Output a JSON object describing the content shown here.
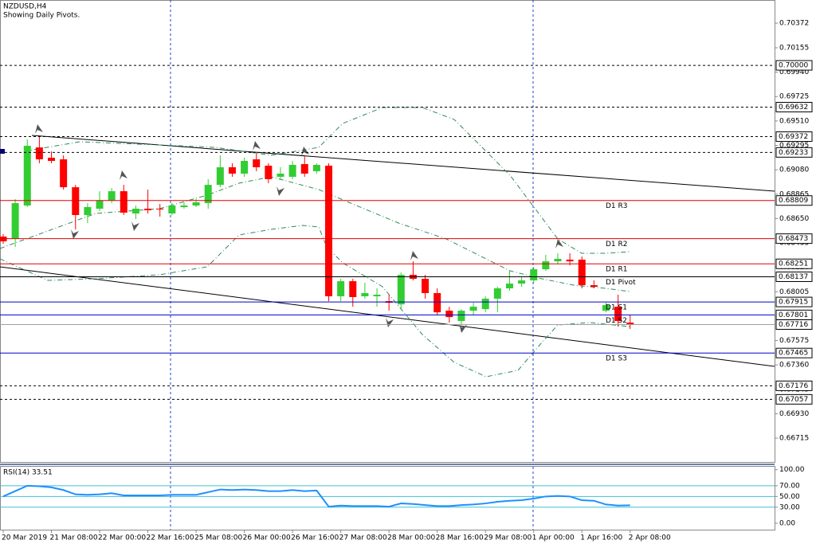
{
  "title": "NZDUSD,H4",
  "subtitle": "Showing Daily Pivots.",
  "chart_data": [
    {
      "type": "candlestick",
      "categories": [
        "20 Mar 2019",
        null,
        null,
        null,
        "21 Mar 08:00",
        null,
        null,
        null,
        "22 Mar 00:00",
        null,
        null,
        null,
        "22 Mar 16:00",
        null,
        null,
        null,
        "25 Mar 08:00",
        null,
        null,
        null,
        "26 Mar 00:00",
        null,
        null,
        null,
        "26 Mar 16:00",
        null,
        null,
        null,
        "27 Mar 08:00",
        null,
        null,
        null,
        "28 Mar 00:00",
        null,
        null,
        null,
        "28 Mar 16:00",
        null,
        null,
        null,
        "29 Mar 08:00",
        null,
        null,
        null,
        "1 Apr 00:00",
        null,
        null,
        null,
        "1 Apr 16:00",
        null,
        null,
        null,
        "2 Apr 08:00"
      ],
      "open": [
        0.68491,
        0.6847,
        0.68765,
        0.69277,
        0.69186,
        0.69172,
        0.68926,
        0.68681,
        0.68737,
        0.68807,
        0.68891,
        0.68695,
        0.68737,
        0.68737,
        0.68695,
        0.68751,
        0.68765,
        0.68786,
        0.68947,
        0.69102,
        0.69046,
        0.69172,
        0.69116,
        0.69018,
        0.69018,
        0.6913,
        0.69067,
        0.69116,
        0.67965,
        0.68098,
        0.67965,
        0.67965,
        0.67922,
        0.67894,
        0.68154,
        0.68119,
        0.67993,
        0.67838,
        0.67747,
        0.67838,
        0.67852,
        0.67944,
        0.68035,
        0.68077,
        0.68105,
        0.68203,
        0.68273,
        0.68288,
        0.68288,
        0.68063,
        0.67838,
        0.67873,
        0.67733
      ],
      "high": [
        0.68512,
        0.68821,
        0.69348,
        0.69369,
        0.69242,
        0.69207,
        0.68947,
        0.68786,
        0.68891,
        0.68919,
        0.68947,
        0.68765,
        0.68905,
        0.68779,
        0.68786,
        0.68793,
        0.68821,
        0.68997,
        0.69207,
        0.69137,
        0.69186,
        0.69228,
        0.69137,
        0.69102,
        0.69158,
        0.692,
        0.69137,
        0.69137,
        0.68119,
        0.68119,
        0.68084,
        0.68035,
        0.67979,
        0.68175,
        0.68273,
        0.68154,
        0.68035,
        0.67873,
        0.67852,
        0.67908,
        0.67965,
        0.68049,
        0.68189,
        0.68133,
        0.68224,
        0.6833,
        0.68344,
        0.68344,
        0.68316,
        0.68105,
        0.67908,
        0.67979,
        0.67803
      ],
      "low": [
        0.68428,
        0.684,
        0.68751,
        0.69137,
        0.69137,
        0.68905,
        0.68554,
        0.6861,
        0.68716,
        0.68786,
        0.68681,
        0.68646,
        0.68695,
        0.68667,
        0.68681,
        0.68737,
        0.68751,
        0.68737,
        0.68926,
        0.69018,
        0.69018,
        0.69067,
        0.68961,
        0.68997,
        0.68997,
        0.69018,
        0.69046,
        0.67922,
        0.67922,
        0.67873,
        0.67944,
        0.67873,
        0.67838,
        0.67852,
        0.68105,
        0.67944,
        0.67803,
        0.67733,
        0.67712,
        0.67803,
        0.67824,
        0.67824,
        0.68014,
        0.68049,
        0.68084,
        0.68189,
        0.68245,
        0.68238,
        0.68035,
        0.68035,
        0.67824,
        0.67698,
        0.67677
      ],
      "close": [
        0.68449,
        0.68786,
        0.69291,
        0.69172,
        0.69158,
        0.68926,
        0.68681,
        0.68751,
        0.68807,
        0.68891,
        0.68702,
        0.68737,
        0.68723,
        0.6873,
        0.68765,
        0.68765,
        0.68793,
        0.68947,
        0.69102,
        0.69046,
        0.69158,
        0.69102,
        0.68997,
        0.69046,
        0.69123,
        0.69046,
        0.69123,
        0.67965,
        0.68098,
        0.67958,
        0.67993,
        0.67979,
        0.67908,
        0.68154,
        0.68119,
        0.67993,
        0.67824,
        0.67782,
        0.67838,
        0.67873,
        0.67944,
        0.68035,
        0.68077,
        0.68105,
        0.68203,
        0.68273,
        0.68295,
        0.68273,
        0.68063,
        0.68049,
        0.67887,
        0.67747,
        0.67712
      ],
      "up_color": "#32cd32",
      "down_color": "#ff0000",
      "ylim": [
        0.66505,
        0.70576
      ],
      "yticks": [
        0.70372,
        0.70155,
        {
          "value": 0.6994,
          "label": "0.69940"
        },
        0.69725,
        {
          "value": 0.6951,
          "label": "0.69510"
        },
        0.69295,
        {
          "value": 0.6908,
          "label": "0.69080"
        },
        0.68865,
        {
          "value": 0.6865,
          "label": "0.68650"
        },
        0.68435,
        {
          "value": 0.6822,
          "label": "0.68220"
        },
        0.68005,
        {
          "value": 0.6779,
          "label": "0.67790"
        },
        0.67575,
        {
          "value": 0.6736,
          "label": "0.67360"
        },
        0.67145,
        {
          "value": 0.6693,
          "label": "0.66930"
        },
        0.66715
      ],
      "levels": [
        {
          "value": 0.7,
          "label": "0.70000",
          "color": "#000000",
          "dashed": true
        },
        {
          "value": 0.69632,
          "color": "#000000",
          "dashed": true
        },
        {
          "value": 0.69372,
          "color": "#000000",
          "dashed": true
        },
        {
          "value": 0.69233,
          "color": "#000000",
          "dashed": true
        },
        {
          "value": 0.68809,
          "color": "#e00000",
          "dashed": false,
          "name": "D1 R3"
        },
        {
          "value": 0.68473,
          "color": "#e00000",
          "dashed": false,
          "name": "D1 R2"
        },
        {
          "value": 0.68251,
          "color": "#e00000",
          "dashed": false,
          "name": "D1 R1"
        },
        {
          "value": 0.68137,
          "color": "#000000",
          "dashed": false,
          "name": "D1 Pivot"
        },
        {
          "value": 0.67915,
          "color": "#0000cc",
          "dashed": false,
          "name": "D1 S1"
        },
        {
          "value": 0.67801,
          "color": "#0000cc",
          "dashed": false,
          "name": "D1 S2"
        },
        {
          "value": 0.67716,
          "color": "#a0a0a0",
          "dashed": false
        },
        {
          "value": 0.67465,
          "color": "#0000cc",
          "dashed": false,
          "name": "D1 S3"
        },
        {
          "value": 0.67176,
          "color": "#000000",
          "dashed": true
        },
        {
          "value": 0.67057,
          "color": "#000000",
          "dashed": true
        }
      ]
    },
    {
      "type": "line",
      "title": "RSI(14) 33.51",
      "color": "#1e90ff",
      "values": [
        50,
        60,
        70,
        69,
        67,
        62,
        54,
        53,
        54,
        56,
        52,
        52,
        52,
        52,
        53,
        53,
        53,
        58,
        63,
        62,
        63,
        62,
        60,
        60,
        62,
        60,
        61,
        31,
        33,
        32,
        32,
        32,
        31,
        37,
        36,
        34,
        32,
        32,
        34,
        35,
        37,
        40,
        42,
        43,
        46,
        50,
        51,
        50,
        43,
        42,
        35,
        33,
        33.51
      ],
      "ylim": [
        -12,
        107
      ],
      "yticks": [
        {
          "value": 100,
          "label": "100.00"
        },
        {
          "value": 70,
          "label": "70.00"
        },
        {
          "value": 50,
          "label": "50.00"
        },
        {
          "value": 30,
          "label": "30.00"
        },
        {
          "value": 0,
          "label": "0.00"
        }
      ],
      "levels": [
        70,
        50,
        30
      ],
      "level_color": "#40c0d0"
    }
  ]
}
